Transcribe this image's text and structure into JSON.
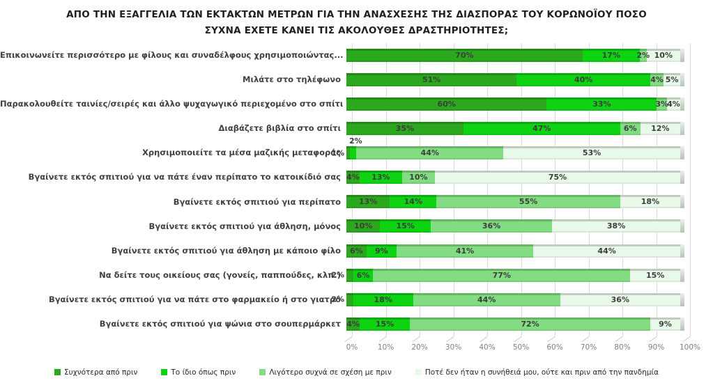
{
  "title": {
    "line1": "ΑΠΟ ΤΗΝ ΕΞΑΓΓΕΛΙΑ ΤΩΝ ΕΚΤΑΚΤΩΝ ΜΕΤΡΩΝ ΓΙΑ ΤΗΝ ΑΝΑΣΧΕΣΗΣ ΤΗΣ ΔΙΑΣΠΟΡΑΣ ΤΟΥ ΚΟΡΩΝΟΪΟΥ ΠΟΣΟ",
    "line2": "ΣΥΧΝΑ ΕΧΕΤΕ ΚΑΝΕΙ ΤΙΣ ΑΚΟΛΟΥΘΕΣ ΔΡΑΣΤΗΡΙΟΤΗΤΕΣ;"
  },
  "chart_data": {
    "type": "bar",
    "orientation": "horizontal",
    "stacked": true,
    "title": "ΑΠΟ ΤΗΝ ΕΞΑΓΓΕΛΙΑ ΤΩΝ ΕΚΤΑΚΤΩΝ ΜΕΤΡΩΝ ΓΙΑ ΤΗΝ ΑΝΑΣΧΕΣΗΣ ΤΗΣ ΔΙΑΣΠΟΡΑΣ ΤΟΥ ΚΟΡΩΝΟΪΟΥ ΠΟΣΟ ΣΥΧΝΑ ΕΧΕΤΕ ΚΑΝΕΙ ΤΙΣ ΑΚΟΛΟΥΘΕΣ ΔΡΑΣΤΗΡΙΟΤΗΤΕΣ;",
    "categories": [
      "Επικοινωνείτε περισσότερο με φίλους και συναδέλφους χρησιμοποιώντας...",
      "Μιλάτε στο τηλέφωνο",
      "Παρακολουθείτε ταινίες/σειρές και άλλο ψυχαγωγικό περιεχομένο στο σπίτι",
      "Διαβάζετε βιβλία στο σπίτι",
      "Χρησιμοποιείτε τα μέσα μαζικής μεταφοράς",
      "Βγαίνετε εκτός σπιτιού για να πάτε έναν περίπατο το κατοικίδιό σας",
      "Βγαίνετε εκτός σπιτιού για περίπατο",
      "Βγαίνετε εκτός σπιτιού για άθληση, μόνος",
      "Βγαίνετε εκτός σπιτιού για άθληση με κάποιο φίλο",
      "Να δείτε τους οικείους σας (γονείς, παππούδες, κλπ.)",
      "Βγαίνετε εκτός σπιτιού για να πάτε στο φαρμακείο ή στο γιατρό",
      "Βγαίνετε εκτός σπιτιού για ψώνια στο σουπερμάρκετ"
    ],
    "series": [
      {
        "name": "Συχνότερα από πριν",
        "color": "#2BA81D",
        "values": [
          70,
          51,
          60,
          35,
          1,
          4,
          13,
          10,
          6,
          2,
          2,
          4
        ]
      },
      {
        "name": "Το ίδιο όπως πριν",
        "color": "#0ED312",
        "values": [
          17,
          40,
          33,
          47,
          2,
          13,
          14,
          15,
          9,
          6,
          18,
          15
        ]
      },
      {
        "name": "Λιγότερο συχνά σε σχέση με πριν",
        "color": "#82DC82",
        "values": [
          2,
          4,
          3,
          6,
          44,
          10,
          55,
          36,
          41,
          77,
          44,
          72
        ]
      },
      {
        "name": "Ποτέ δεν ήταν η συνήθειά μου, ούτε και πριν από την πανδημία",
        "color": "#E9F9E9",
        "values": [
          10,
          5,
          4,
          12,
          53,
          75,
          18,
          38,
          44,
          15,
          36,
          9
        ]
      }
    ],
    "value_suffix": "%",
    "xlim": [
      0,
      100
    ],
    "x_ticks": [
      "0%",
      "10%",
      "20%",
      "30%",
      "40%",
      "50%",
      "60%",
      "70%",
      "80%",
      "90%",
      "100%"
    ],
    "grid": "vertical",
    "legend_position": "bottom",
    "label_overrides": {
      "4": [
        "out-left",
        "above",
        "in",
        "in"
      ],
      "9": [
        "out-left",
        "in",
        "in",
        "in"
      ],
      "10": [
        "out-left",
        "in",
        "in",
        "in"
      ]
    }
  },
  "colors": {
    "segment_label": "#3d3d3d",
    "category_label": "#404040",
    "axis_tick": "#7f7f7f",
    "gridline": "#d9d9d9",
    "bar_end_cap": "#b7c3b7"
  }
}
